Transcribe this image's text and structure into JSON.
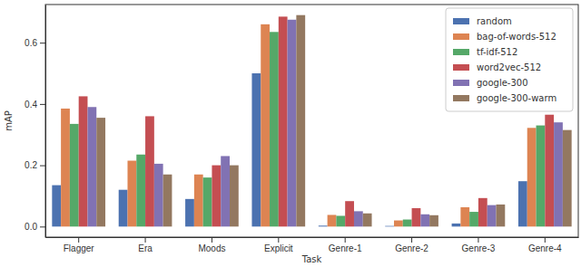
{
  "chart_data": {
    "type": "bar",
    "x_label": "Task",
    "y_label": "mAP",
    "categories": [
      "Flagger",
      "Era",
      "Moods",
      "Explicit",
      "Genre-1",
      "Genre-2",
      "Genre-3",
      "Genre-4"
    ],
    "series": [
      {
        "name": "random",
        "color": "#4c72b0",
        "values": [
          0.135,
          0.12,
          0.09,
          0.5,
          0.003,
          0.002,
          0.01,
          0.148
        ]
      },
      {
        "name": "bag-of-words-512",
        "color": "#dd8452",
        "values": [
          0.385,
          0.215,
          0.17,
          0.66,
          0.038,
          0.02,
          0.063,
          0.322
        ]
      },
      {
        "name": "tf-idf-512",
        "color": "#55a868",
        "values": [
          0.335,
          0.235,
          0.16,
          0.635,
          0.035,
          0.023,
          0.048,
          0.33
        ]
      },
      {
        "name": "word2vec-512",
        "color": "#c44e52",
        "values": [
          0.425,
          0.36,
          0.2,
          0.685,
          0.083,
          0.06,
          0.093,
          0.365
        ]
      },
      {
        "name": "google-300",
        "color": "#8172b3",
        "values": [
          0.39,
          0.205,
          0.23,
          0.675,
          0.05,
          0.04,
          0.07,
          0.34
        ]
      },
      {
        "name": "google-300-warm",
        "color": "#937860",
        "values": [
          0.355,
          0.17,
          0.2,
          0.69,
          0.043,
          0.037,
          0.072,
          0.315
        ]
      }
    ],
    "ylim": [
      -0.0345,
      0.7245
    ],
    "yticks": [
      {
        "value": 0,
        "label": "0.0"
      },
      {
        "value": 0.2,
        "label": "0.2"
      },
      {
        "value": 0.4,
        "label": "0.4"
      },
      {
        "value": 0.6,
        "label": "0.6"
      }
    ],
    "legend": "upper right",
    "grid": false
  }
}
